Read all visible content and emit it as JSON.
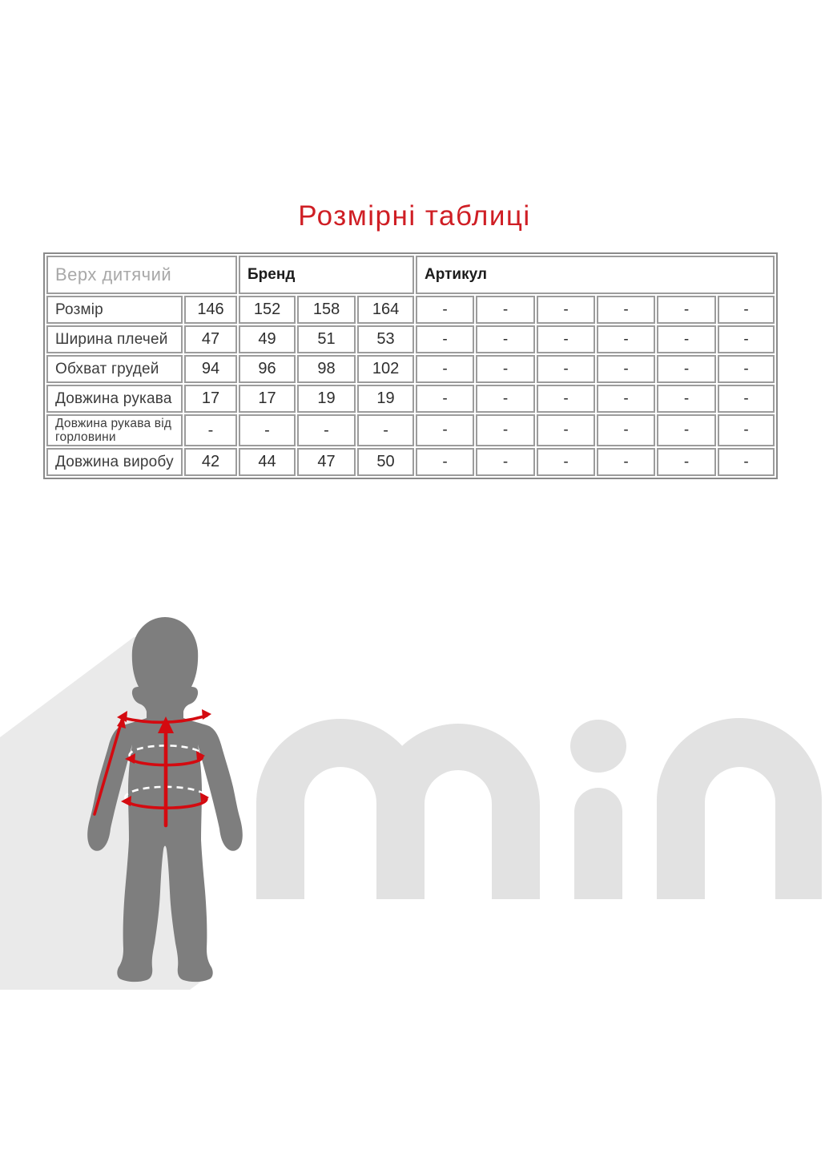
{
  "page": {
    "title": "Розмірні таблиці"
  },
  "colors": {
    "title_red": "#cf1e24",
    "arrow_red": "#d40a10",
    "silhouette_gray": "#7e7e7e",
    "wedge_gray": "#eaeaea",
    "watermark_gray": "#e2e2e2",
    "table_line": "#9c9c9c",
    "table_outer_line": "#8a8a8a",
    "muted_header_gray": "#a8a8a8"
  },
  "table": {
    "group_header": "Верх дитячий",
    "brand_header": "Бренд",
    "article_header": "Артикул",
    "rows": [
      {
        "label": "Розмір",
        "values": [
          "146",
          "152",
          "158",
          "164"
        ],
        "article": [
          "-",
          "-",
          "-",
          "-",
          "-",
          "-"
        ]
      },
      {
        "label": "Ширина плечей",
        "values": [
          "47",
          "49",
          "51",
          "53"
        ],
        "article": [
          "-",
          "-",
          "-",
          "-",
          "-",
          "-"
        ]
      },
      {
        "label": "Обхват грудей",
        "values": [
          "94",
          "96",
          "98",
          "102"
        ],
        "article": [
          "-",
          "-",
          "-",
          "-",
          "-",
          "-"
        ]
      },
      {
        "label": "Довжина рукава",
        "values": [
          "17",
          "17",
          "19",
          "19"
        ],
        "article": [
          "-",
          "-",
          "-",
          "-",
          "-",
          "-"
        ]
      },
      {
        "label": "Довжина рукава від горловини",
        "values": [
          "-",
          "-",
          "-",
          "-"
        ],
        "article": [
          "-",
          "-",
          "-",
          "-",
          "-",
          "-"
        ]
      },
      {
        "label": "Довжина виробу",
        "values": [
          "42",
          "44",
          "47",
          "50"
        ],
        "article": [
          "-",
          "-",
          "-",
          "-",
          "-",
          "-"
        ]
      }
    ]
  },
  "figure": {
    "watermark_text": "min",
    "silhouette": "child-front-silhouette",
    "measurement_arrows": [
      "shoulder-width",
      "sleeve-length",
      "garment-length",
      "chest-girth",
      "waist-girth"
    ]
  }
}
